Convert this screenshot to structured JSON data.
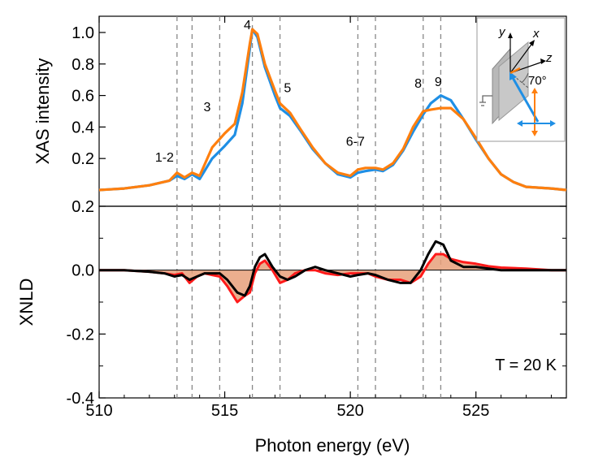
{
  "chart_data": [
    {
      "type": "line",
      "panel": "top",
      "ylabel": "XAS intensity",
      "xlim": [
        510,
        528.6
      ],
      "ylim": [
        0.0,
        1.05
      ],
      "y_ticks": [
        0.2,
        0.4,
        0.6,
        0.8,
        1.0
      ],
      "y_tick_labels": [
        "0.2",
        "0.4",
        "0.6",
        "0.8",
        "1.0"
      ],
      "grid": false,
      "legend": "none",
      "peak_positions": [
        513.1,
        513.7,
        514.8,
        516.1,
        517.2,
        520.3,
        521.0,
        522.9,
        523.6
      ],
      "peak_labels": [
        {
          "text": "1-2",
          "x": 512.6,
          "y": 0.18
        },
        {
          "text": "3",
          "x": 514.3,
          "y": 0.5
        },
        {
          "text": "4",
          "x": 515.9,
          "y": 1.02
        },
        {
          "text": "5",
          "x": 517.5,
          "y": 0.62
        },
        {
          "text": "6-7",
          "x": 520.2,
          "y": 0.28
        },
        {
          "text": "8",
          "x": 522.7,
          "y": 0.65
        },
        {
          "text": "9",
          "x": 523.5,
          "y": 0.66
        }
      ],
      "series": [
        {
          "color": "#1f8fe5",
          "x": [
            510.0,
            511.0,
            512.0,
            512.8,
            513.1,
            513.4,
            513.7,
            514.0,
            514.5,
            515.0,
            515.4,
            515.7,
            516.0,
            516.1,
            516.3,
            516.6,
            517.0,
            517.2,
            517.6,
            518.0,
            518.5,
            519.0,
            519.5,
            520.0,
            520.3,
            520.6,
            521.0,
            521.3,
            521.7,
            522.1,
            522.5,
            522.9,
            523.2,
            523.6,
            524.0,
            524.5,
            525.0,
            525.5,
            526.0,
            526.5,
            527.0,
            528.0,
            528.6
          ],
          "values": [
            0.0,
            0.01,
            0.03,
            0.06,
            0.09,
            0.07,
            0.1,
            0.07,
            0.2,
            0.28,
            0.35,
            0.55,
            0.9,
            1.02,
            0.97,
            0.78,
            0.6,
            0.52,
            0.47,
            0.38,
            0.26,
            0.17,
            0.1,
            0.08,
            0.11,
            0.12,
            0.13,
            0.12,
            0.16,
            0.25,
            0.37,
            0.48,
            0.55,
            0.6,
            0.57,
            0.45,
            0.32,
            0.2,
            0.1,
            0.05,
            0.02,
            0.01,
            0.0
          ]
        },
        {
          "color": "#ff7f0e",
          "x": [
            510.0,
            511.0,
            512.0,
            512.8,
            513.1,
            513.4,
            513.7,
            514.0,
            514.5,
            515.0,
            515.4,
            515.7,
            516.0,
            516.1,
            516.3,
            516.6,
            517.0,
            517.2,
            517.6,
            518.0,
            518.5,
            519.0,
            519.5,
            520.0,
            520.3,
            520.6,
            521.0,
            521.3,
            521.7,
            522.1,
            522.5,
            522.9,
            523.2,
            523.6,
            524.0,
            524.5,
            525.0,
            525.5,
            526.0,
            526.5,
            527.0,
            528.0,
            528.6
          ],
          "values": [
            0.0,
            0.01,
            0.03,
            0.06,
            0.11,
            0.08,
            0.11,
            0.09,
            0.27,
            0.36,
            0.42,
            0.62,
            0.93,
            1.02,
            0.99,
            0.8,
            0.63,
            0.55,
            0.49,
            0.39,
            0.27,
            0.17,
            0.11,
            0.09,
            0.13,
            0.14,
            0.14,
            0.13,
            0.17,
            0.26,
            0.4,
            0.5,
            0.51,
            0.52,
            0.52,
            0.45,
            0.33,
            0.2,
            0.1,
            0.05,
            0.02,
            0.01,
            0.0
          ]
        }
      ]
    },
    {
      "type": "line",
      "panel": "bottom",
      "xlabel": "Photon energy (eV)",
      "ylabel": "XNLD",
      "xlim": [
        510,
        528.6
      ],
      "ylim": [
        -0.4,
        0.2
      ],
      "x_ticks": [
        510,
        515,
        520,
        525
      ],
      "x_tick_labels": [
        "510",
        "515",
        "520",
        "525"
      ],
      "y_ticks": [
        -0.4,
        -0.2,
        0.0,
        0.2
      ],
      "y_tick_labels": [
        "-0.4",
        "-0.2",
        "0.0",
        "0.2"
      ],
      "grid": false,
      "legend": "none",
      "annotation": "T = 20 K",
      "fill_color": "#e8a07a",
      "series": [
        {
          "color": "#ff1a1a",
          "x": [
            510.0,
            511.0,
            512.0,
            512.6,
            513.0,
            513.3,
            513.6,
            513.9,
            514.2,
            514.5,
            514.8,
            515.1,
            515.5,
            515.8,
            516.0,
            516.2,
            516.4,
            516.6,
            516.9,
            517.2,
            517.5,
            517.8,
            518.2,
            518.6,
            519.0,
            519.5,
            520.0,
            520.3,
            520.7,
            521.0,
            521.5,
            522.0,
            522.4,
            522.8,
            523.1,
            523.4,
            523.7,
            524.0,
            524.5,
            525.0,
            525.5,
            526.0,
            527.0,
            528.0,
            528.6
          ],
          "values": [
            0.0,
            0.0,
            -0.005,
            -0.01,
            -0.015,
            -0.01,
            -0.04,
            -0.02,
            -0.01,
            -0.015,
            -0.02,
            -0.05,
            -0.1,
            -0.08,
            -0.07,
            -0.01,
            0.02,
            0.03,
            0.0,
            -0.04,
            -0.03,
            -0.01,
            0.0,
            0.0,
            -0.01,
            -0.015,
            -0.01,
            -0.01,
            -0.01,
            -0.02,
            -0.03,
            -0.03,
            -0.04,
            -0.02,
            0.02,
            0.05,
            0.05,
            0.035,
            0.025,
            0.02,
            0.012,
            0.008,
            0.005,
            0.0,
            0.0
          ]
        },
        {
          "color": "#000000",
          "x": [
            510.0,
            511.0,
            512.0,
            512.6,
            513.0,
            513.3,
            513.6,
            513.9,
            514.2,
            514.5,
            514.8,
            515.1,
            515.5,
            515.8,
            516.0,
            516.2,
            516.4,
            516.6,
            516.9,
            517.2,
            517.5,
            517.8,
            518.2,
            518.6,
            519.0,
            519.5,
            520.0,
            520.3,
            520.7,
            521.0,
            521.5,
            522.0,
            522.4,
            522.8,
            523.1,
            523.4,
            523.7,
            524.0,
            524.5,
            525.0,
            525.5,
            526.0,
            527.0,
            528.0,
            528.6
          ],
          "values": [
            0.0,
            0.0,
            -0.005,
            -0.01,
            -0.02,
            -0.015,
            -0.03,
            -0.02,
            -0.01,
            -0.01,
            -0.01,
            -0.03,
            -0.07,
            -0.08,
            -0.05,
            0.01,
            0.04,
            0.05,
            0.01,
            -0.02,
            -0.03,
            -0.02,
            0.0,
            0.01,
            0.0,
            -0.01,
            -0.02,
            -0.015,
            -0.01,
            -0.015,
            -0.03,
            -0.04,
            -0.04,
            0.0,
            0.05,
            0.09,
            0.08,
            0.03,
            0.01,
            0.01,
            0.005,
            0.0,
            0.0,
            0.0,
            0.0
          ]
        }
      ]
    }
  ],
  "inset": {
    "axis_labels": [
      "y",
      "x",
      "z"
    ],
    "angle": "70°",
    "arrow_colors": [
      "#1f8fe5",
      "#ff7f0e"
    ]
  }
}
